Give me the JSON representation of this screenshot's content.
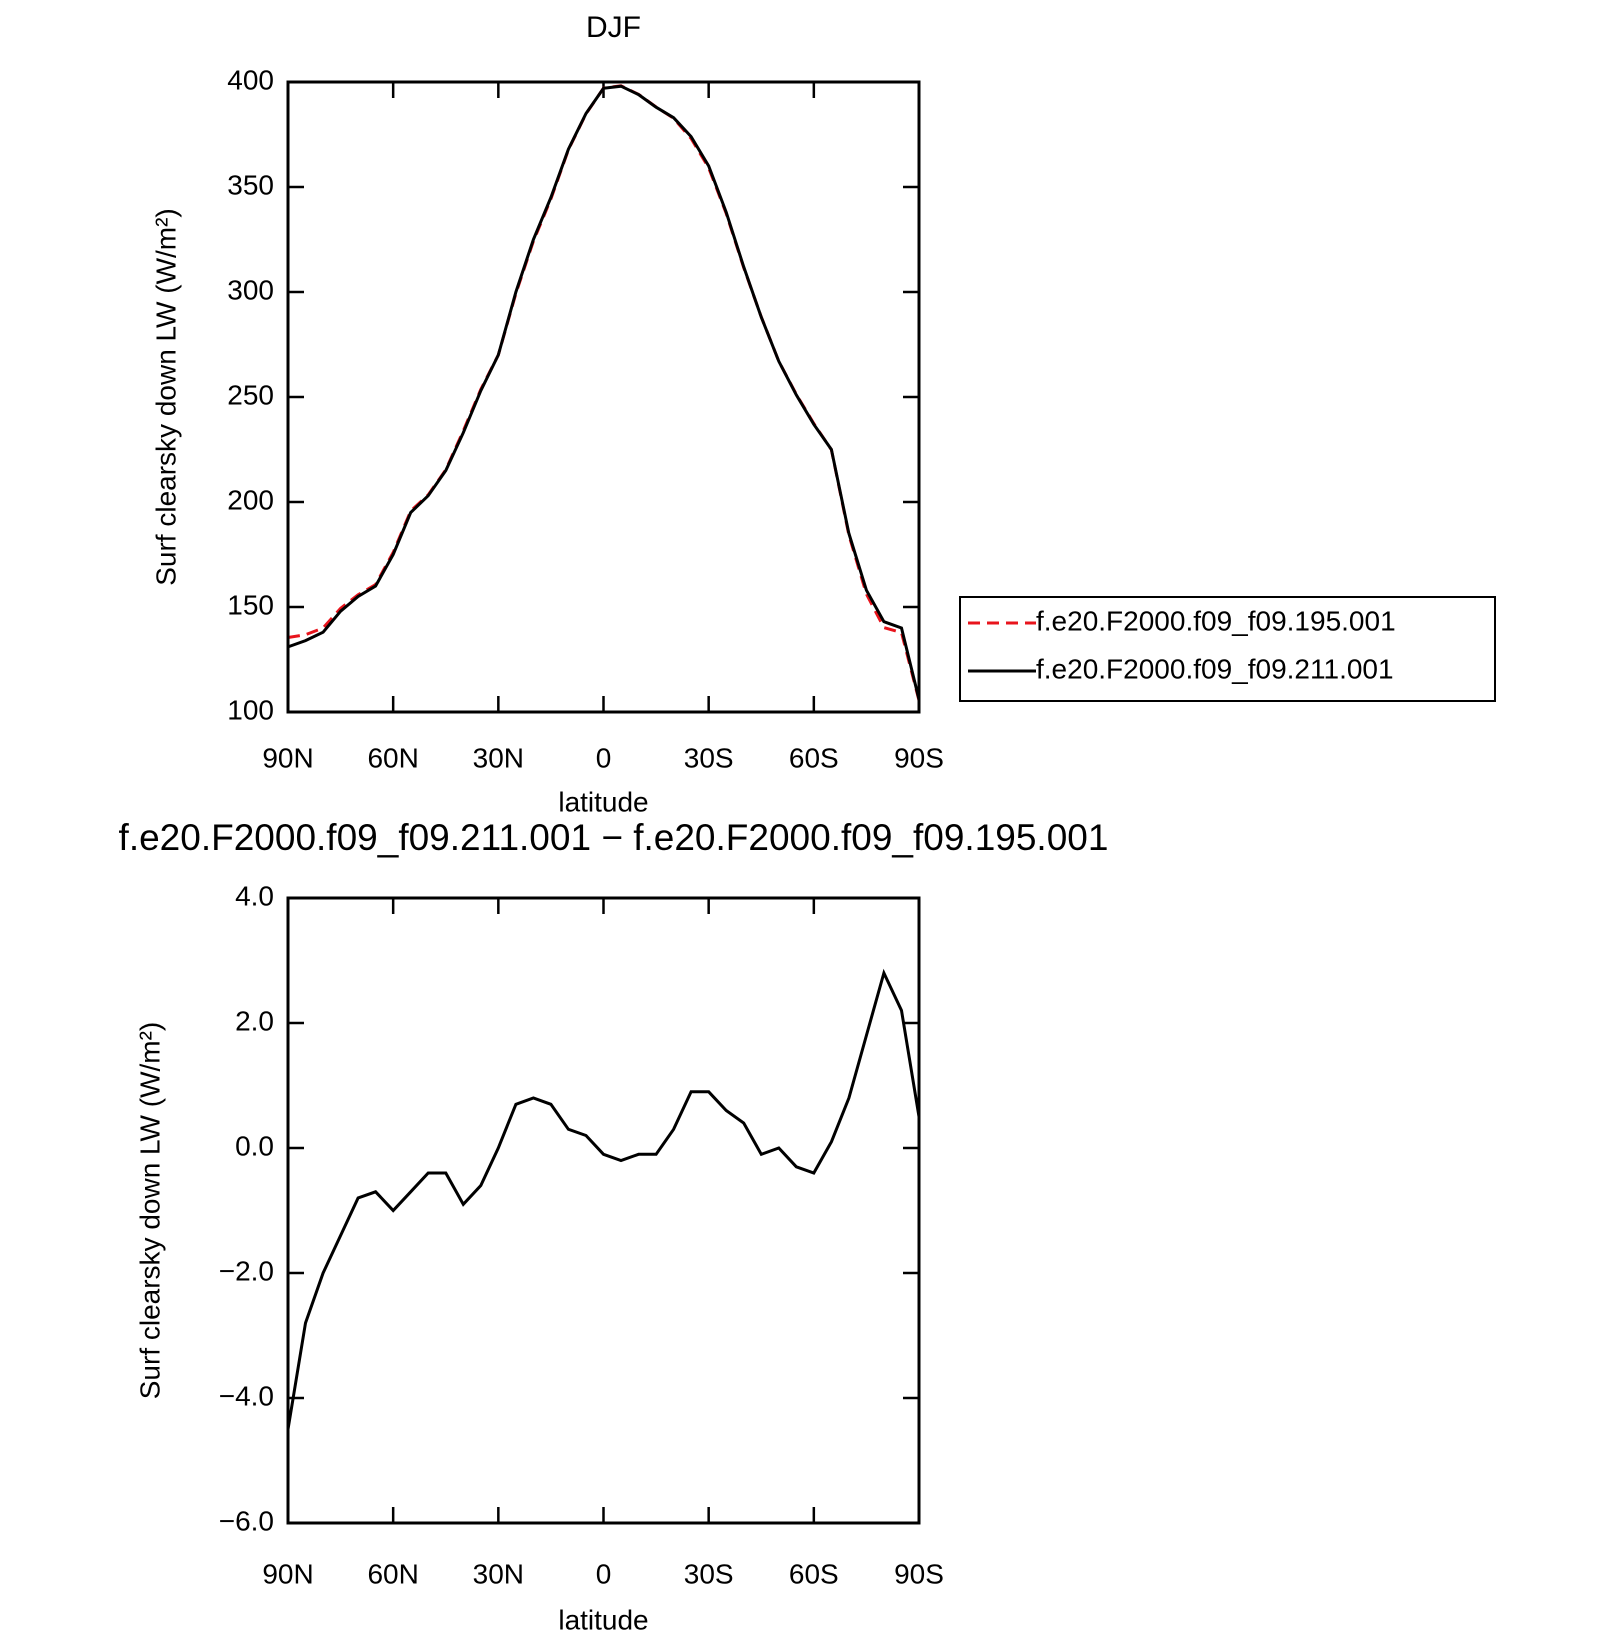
{
  "chart_data": [
    {
      "type": "line",
      "title": "DJF",
      "xlabel": "latitude",
      "ylabel": "Surf clearsky down LW (W/m²)",
      "x": [
        90,
        85,
        80,
        75,
        70,
        65,
        60,
        55,
        50,
        45,
        40,
        35,
        30,
        25,
        20,
        15,
        10,
        5,
        0,
        -5,
        -10,
        -15,
        -20,
        -25,
        -30,
        -35,
        -40,
        -45,
        -50,
        -55,
        -60,
        -65,
        -70,
        -75,
        -80,
        -85,
        -90
      ],
      "series": [
        {
          "name": "f.e20.F2000.f09_f09.195.001",
          "color": "#e8141c",
          "dash": true,
          "values": [
            135.5,
            136.8,
            140,
            149.4,
            155.8,
            160.7,
            176,
            195.7,
            203.4,
            215.4,
            233.9,
            253.6,
            270,
            299.3,
            324.2,
            344.3,
            367.7,
            384.8,
            397.1,
            398.2,
            394.1,
            388.1,
            382.7,
            373.1,
            359.1,
            337.4,
            311.6,
            288.1,
            267,
            251.3,
            237.4,
            224.9,
            184.2,
            156.2,
            140.2,
            137.8,
            105.5
          ]
        },
        {
          "name": "f.e20.F2000.f09_f09.211.001",
          "color": "#000000",
          "dash": false,
          "values": [
            131,
            134,
            138,
            148,
            155,
            160,
            175,
            195,
            203,
            215,
            233,
            253,
            270,
            300,
            325,
            345,
            368,
            385,
            397,
            398,
            394,
            388,
            383,
            374,
            360,
            338,
            312,
            288,
            267,
            251,
            237,
            225,
            185,
            158,
            143,
            140,
            106
          ]
        }
      ],
      "xlim": [
        90,
        -90
      ],
      "xticks": [
        {
          "value": 90,
          "label": "90N"
        },
        {
          "value": 60,
          "label": "60N"
        },
        {
          "value": 30,
          "label": "30N"
        },
        0,
        {
          "value": -30,
          "label": "30S"
        },
        {
          "value": -60,
          "label": "60S"
        },
        {
          "value": -90,
          "label": "90S"
        }
      ],
      "ylim": [
        100,
        400
      ],
      "yticks": [
        100,
        150,
        200,
        250,
        300,
        350,
        400
      ],
      "legend": "right"
    },
    {
      "type": "line",
      "title": "f.e20.F2000.f09_f09.211.001 − f.e20.F2000.f09_f09.195.001",
      "xlabel": "latitude",
      "ylabel": "Surf clearsky down LW (W/m²)",
      "x": [
        90,
        85,
        80,
        75,
        70,
        65,
        60,
        55,
        50,
        45,
        40,
        35,
        30,
        25,
        20,
        15,
        10,
        5,
        0,
        -5,
        -10,
        -15,
        -20,
        -25,
        -30,
        -35,
        -40,
        -45,
        -50,
        -55,
        -60,
        -65,
        -70,
        -75,
        -80,
        -85,
        -90
      ],
      "series": [
        {
          "color": "#000000",
          "dash": false,
          "values": [
            -4.5,
            -2.8,
            -2.0,
            -1.4,
            -0.8,
            -0.7,
            -1.0,
            -0.7,
            -0.4,
            -0.4,
            -0.9,
            -0.6,
            0.0,
            0.7,
            0.8,
            0.7,
            0.3,
            0.2,
            -0.1,
            -0.2,
            -0.1,
            -0.1,
            0.3,
            0.9,
            0.9,
            0.6,
            0.4,
            -0.1,
            0.0,
            -0.3,
            -0.4,
            0.1,
            0.8,
            1.8,
            2.8,
            2.2,
            0.5
          ]
        }
      ],
      "xlim": [
        90,
        -90
      ],
      "xticks": [
        {
          "value": 90,
          "label": "90N"
        },
        {
          "value": 60,
          "label": "60N"
        },
        {
          "value": 30,
          "label": "30N"
        },
        0,
        {
          "value": -30,
          "label": "30S"
        },
        {
          "value": -60,
          "label": "60S"
        },
        {
          "value": -90,
          "label": "90S"
        }
      ],
      "ylim": [
        -6,
        4
      ],
      "yticks": [
        {
          "value": -6,
          "label": "−6.0"
        },
        {
          "value": -4,
          "label": "−4.0"
        },
        {
          "value": -2,
          "label": "−2.0"
        },
        {
          "value": 0,
          "label": "0.0"
        },
        {
          "value": 2,
          "label": "2.0"
        },
        {
          "value": 4,
          "label": "4.0"
        }
      ]
    }
  ]
}
